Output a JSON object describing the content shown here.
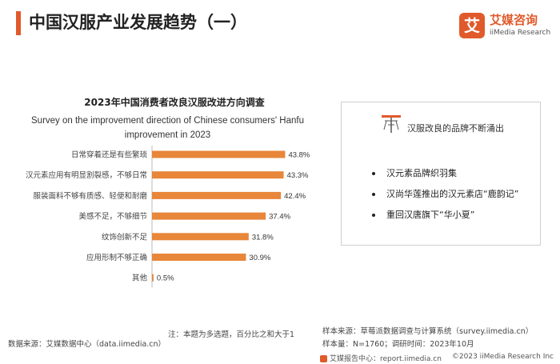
{
  "header": {
    "title": "中国汉服产业发展趋势（一）",
    "accent_color": "#e05a2b"
  },
  "logo": {
    "badge_text": "艾",
    "cn": "艾媒咨询",
    "en": "iiMedia Research",
    "color": "#e05a2b"
  },
  "chart_data": {
    "type": "bar",
    "orientation": "horizontal",
    "title": "2023年中国消费者改良汉服改进方向调查",
    "subtitle": "Survey on the improvement direction of Chinese consumers' Hanfu improvement in 2023",
    "categories": [
      "日常穿着还是有些繁琐",
      "汉元素应用有明显割裂感，不够日常",
      "服装面料不够有质感、轻便和耐磨",
      "美感不足，不够细节",
      "纹饰创新不足",
      "应用形制不够正确",
      "其他"
    ],
    "values": [
      43.8,
      43.3,
      42.4,
      37.4,
      31.8,
      30.9,
      0.5
    ],
    "value_labels": [
      "43.8%",
      "43.3%",
      "42.4%",
      "37.4%",
      "31.8%",
      "30.9%",
      "0.5%"
    ],
    "unit": "%",
    "xlim": [
      0,
      50
    ],
    "bar_color": "#e8863a",
    "grid": false,
    "legend": false
  },
  "card": {
    "icon": "loom-icon",
    "heading": "汉服改良的品牌不断涌出",
    "items": [
      "汉元素品牌织羽集",
      "汉尚华莲推出的汉元素店“鹿韵记”",
      "重回汉唐旗下“华小夏”"
    ]
  },
  "footer": {
    "source": "数据来源：艾媒数据中心（data.iimedia.cn）",
    "note": "注：本题为多选题，百分比之和大于1",
    "sample_source": "样本来源：草莓派数据调查与计算系统（survey.iimedia.cn）",
    "sample_info": "样本量：N=1760；调研时间：2023年10月",
    "report_site": "艾媒报告中心：report.iimedia.cn",
    "copyright": "©2023  iiMedia Research  Inc"
  }
}
